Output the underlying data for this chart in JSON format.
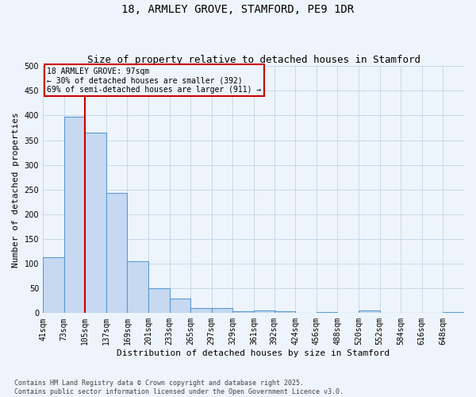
{
  "title": "18, ARMLEY GROVE, STAMFORD, PE9 1DR",
  "subtitle": "Size of property relative to detached houses in Stamford",
  "xlabel": "Distribution of detached houses by size in Stamford",
  "ylabel": "Number of detached properties",
  "bar_edges": [
    41,
    73,
    105,
    137,
    169,
    201,
    233,
    265,
    297,
    329,
    361,
    392,
    424,
    456,
    488,
    520,
    552,
    584,
    616,
    648,
    680
  ],
  "bar_values": [
    113,
    397,
    365,
    243,
    105,
    50,
    30,
    10,
    10,
    4,
    6,
    3,
    0,
    2,
    0,
    5,
    0,
    0,
    0,
    2
  ],
  "bar_color": "#c6d9f0",
  "bar_edge_color": "#5b9bd5",
  "property_line_x": 105,
  "property_line_color": "#cc0000",
  "annotation_line1": "18 ARMLEY GROVE: 97sqm",
  "annotation_line2": "← 30% of detached houses are smaller (392)",
  "annotation_line3": "69% of semi-detached houses are larger (911) →",
  "annotation_box_color": "#cc0000",
  "ylim": [
    0,
    500
  ],
  "yticks": [
    0,
    50,
    100,
    150,
    200,
    250,
    300,
    350,
    400,
    450,
    500
  ],
  "grid_color": "#b8cfe4",
  "background_color": "#eef4fb",
  "title_fontsize": 10,
  "subtitle_fontsize": 9,
  "axis_label_fontsize": 8,
  "tick_fontsize": 7,
  "footer_text": "Contains HM Land Registry data © Crown copyright and database right 2025.\nContains public sector information licensed under the Open Government Licence v3.0.",
  "footer_fontsize": 6
}
